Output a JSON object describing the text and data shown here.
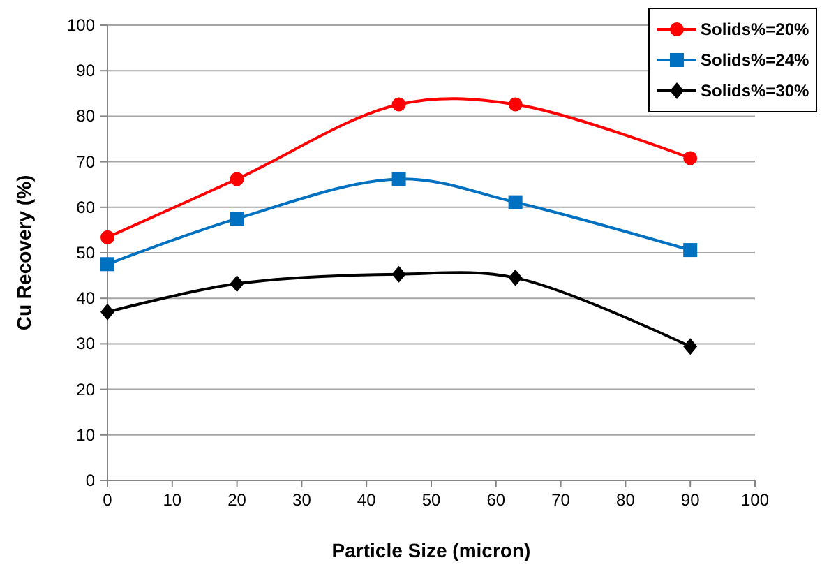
{
  "chart_data": {
    "type": "line",
    "xlabel": "Particle Size (micron)",
    "ylabel": "Cu Recovery (%)",
    "x": [
      0,
      20,
      45,
      63,
      90
    ],
    "series": [
      {
        "name": "Solids%=20%",
        "color": "#ff0000",
        "marker": "circle",
        "values": [
          53.4,
          66.2,
          82.6,
          82.6,
          70.8
        ]
      },
      {
        "name": "Solids%=24%",
        "color": "#0070c0",
        "marker": "square",
        "values": [
          47.5,
          57.5,
          66.2,
          61.1,
          50.6
        ]
      },
      {
        "name": "Solids%=30%",
        "color": "#000000",
        "marker": "diamond",
        "values": [
          37,
          43.2,
          45.3,
          44.5,
          29.4
        ]
      }
    ],
    "xlim": [
      0,
      100
    ],
    "xticks": [
      0,
      10,
      20,
      30,
      40,
      50,
      60,
      70,
      80,
      90,
      100
    ],
    "ylim": [
      0,
      100
    ],
    "yticks": [
      0,
      10,
      20,
      30,
      40,
      50,
      60,
      70,
      80,
      90,
      100
    ],
    "grid": "y",
    "legend": "top right"
  }
}
